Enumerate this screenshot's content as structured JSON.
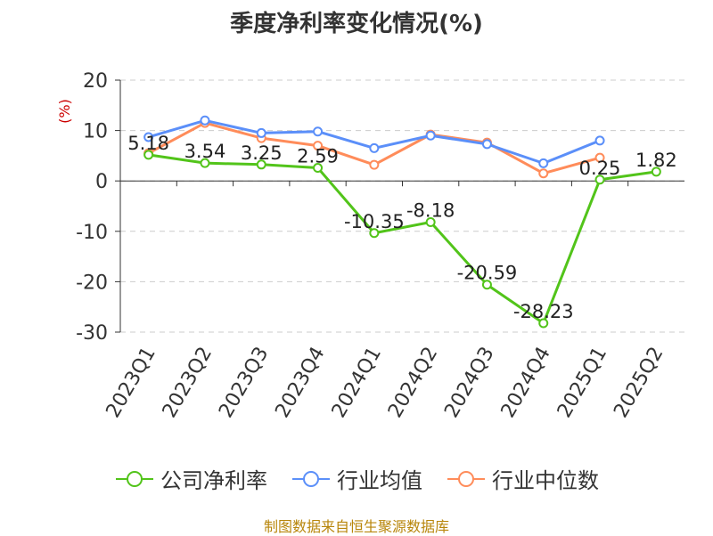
{
  "chart_data": {
    "type": "line",
    "title": "季度净利率变化情况(%)",
    "ylabel": "(%)",
    "xlabel": "",
    "categories": [
      "2023Q1",
      "2023Q2",
      "2023Q3",
      "2023Q4",
      "2024Q1",
      "2024Q2",
      "2024Q3",
      "2024Q4",
      "2025Q1",
      "2025Q2"
    ],
    "ylim": [
      -30,
      20
    ],
    "yticks": [
      20,
      10,
      0,
      -10,
      -20,
      -30
    ],
    "grid": true,
    "legend_position": "bottom",
    "series": [
      {
        "name": "公司净利率",
        "color": "#52c41a",
        "values": [
          5.18,
          3.54,
          3.25,
          2.59,
          -10.35,
          -8.18,
          -20.59,
          -28.23,
          0.25,
          1.82
        ],
        "labels": [
          "5.18",
          "3.54",
          "3.25",
          "2.59",
          "-10.35",
          "-8.18",
          "-20.59",
          "-28.23",
          "0.25",
          "1.82"
        ]
      },
      {
        "name": "行业均值",
        "color": "#5b8ff9",
        "values": [
          8.7,
          12.0,
          9.5,
          9.8,
          6.5,
          9.0,
          7.3,
          3.5,
          8.0,
          null
        ]
      },
      {
        "name": "行业中位数",
        "color": "#ff8c5a",
        "values": [
          5.5,
          11.5,
          8.5,
          7.0,
          3.2,
          9.2,
          7.6,
          1.5,
          4.6,
          null
        ]
      }
    ]
  },
  "footer": {
    "source": "制图数据来自恒生聚源数据库"
  },
  "ylabel_color": "#cc0000"
}
